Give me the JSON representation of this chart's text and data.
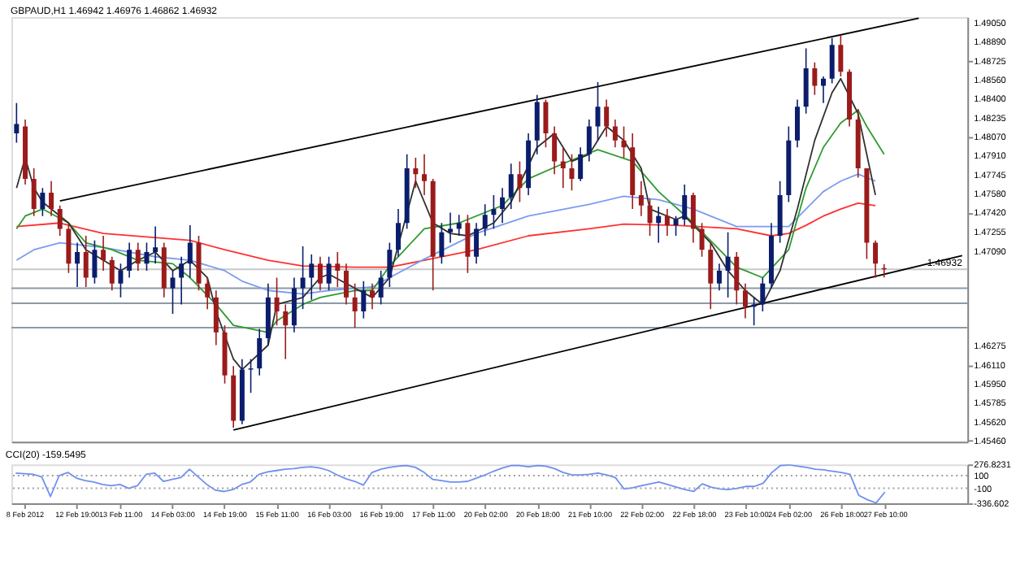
{
  "chart_data": [
    {
      "type": "candlestick",
      "title": "GBPAUD,H1 1.46942 1.46976 1.46862 1.46932",
      "categories": [
        null,
        null,
        null,
        null,
        null,
        null,
        null,
        null,
        null,
        null,
        null,
        null,
        null,
        null,
        null,
        null,
        null,
        null,
        null,
        null,
        null,
        null,
        null,
        null,
        null,
        null,
        null,
        null,
        null,
        null,
        null,
        null,
        null,
        null,
        null,
        null,
        null,
        null,
        null,
        null,
        null,
        null,
        null,
        null,
        null,
        null,
        null,
        null,
        null,
        null,
        null,
        null,
        null,
        null,
        null,
        null,
        null,
        null,
        null,
        null,
        null,
        null,
        null,
        null,
        null,
        null,
        null,
        null,
        null,
        null,
        null,
        null,
        null,
        null,
        null,
        null,
        null,
        null,
        null,
        null,
        null,
        null,
        null,
        null,
        null,
        null,
        null,
        null,
        null,
        null,
        null,
        null,
        null,
        null,
        null,
        null,
        null,
        null,
        null,
        null,
        null,
        null,
        null,
        null,
        null,
        null,
        null,
        null,
        null,
        null
      ],
      "ohlc": [
        [
          1.481,
          1.4836,
          1.4802,
          1.4818
        ],
        [
          1.4816,
          1.4822,
          1.4766,
          1.4771
        ],
        [
          1.4771,
          1.478,
          1.4739,
          1.4745
        ],
        [
          1.4745,
          1.4763,
          1.4739,
          1.4759
        ],
        [
          1.4759,
          1.4769,
          1.4739,
          1.4745
        ],
        [
          1.4745,
          1.4748,
          1.4722,
          1.4728
        ],
        [
          1.4728,
          1.4733,
          1.469,
          1.4698
        ],
        [
          1.4698,
          1.4716,
          1.4678,
          1.4708
        ],
        [
          1.4708,
          1.4722,
          1.4678,
          1.4686
        ],
        [
          1.4686,
          1.4718,
          1.4681,
          1.471
        ],
        [
          1.471,
          1.4722,
          1.4692,
          1.4701
        ],
        [
          1.4701,
          1.4704,
          1.4675,
          1.4681
        ],
        [
          1.4681,
          1.4698,
          1.4669,
          1.4692
        ],
        [
          1.4692,
          1.4716,
          1.4686,
          1.471
        ],
        [
          1.471,
          1.4716,
          1.4692,
          1.4698
        ],
        [
          1.4698,
          1.4716,
          1.4692,
          1.4708
        ],
        [
          1.4708,
          1.473,
          1.4698,
          1.4712
        ],
        [
          1.4712,
          1.4716,
          1.4669,
          1.4677
        ],
        [
          1.4677,
          1.4692,
          1.4655,
          1.4686
        ],
        [
          1.4686,
          1.4704,
          1.4663,
          1.4698
        ],
        [
          1.4698,
          1.4731,
          1.4686,
          1.4716
        ],
        [
          1.4716,
          1.4722,
          1.4675,
          1.4681
        ],
        [
          1.4681,
          1.4686,
          1.4659,
          1.4669
        ],
        [
          1.4669,
          1.4675,
          1.4628,
          1.4639
        ],
        [
          1.4639,
          1.4645,
          1.4595,
          1.4602
        ],
        [
          1.4602,
          1.461,
          1.4557,
          1.4563
        ],
        [
          1.4563,
          1.4616,
          1.456,
          1.4607
        ],
        [
          1.4607,
          1.4616,
          1.4587,
          1.4608
        ],
        [
          1.4608,
          1.4642,
          1.4602,
          1.4634
        ],
        [
          1.4634,
          1.4681,
          1.4628,
          1.4669
        ],
        [
          1.4669,
          1.4686,
          1.4645,
          1.4657
        ],
        [
          1.4657,
          1.4663,
          1.4616,
          1.4645
        ],
        [
          1.4645,
          1.4686,
          1.4639,
          1.4677
        ],
        [
          1.4677,
          1.4713,
          1.4659,
          1.4686
        ],
        [
          1.4686,
          1.4706,
          1.4667,
          1.4698
        ],
        [
          1.4698,
          1.4704,
          1.4675,
          1.4681
        ],
        [
          1.4681,
          1.4704,
          1.4675,
          1.4698
        ],
        [
          1.4698,
          1.4708,
          1.4678,
          1.4692
        ],
        [
          1.4692,
          1.4698,
          1.4663,
          1.4669
        ],
        [
          1.4669,
          1.4681,
          1.4643,
          1.4657
        ],
        [
          1.4657,
          1.4683,
          1.4651,
          1.4675
        ],
        [
          1.4675,
          1.4681,
          1.4659,
          1.4669
        ],
        [
          1.4669,
          1.4692,
          1.4663,
          1.4686
        ],
        [
          1.4686,
          1.4716,
          1.4678,
          1.471
        ],
        [
          1.471,
          1.4745,
          1.4704,
          1.4733
        ],
        [
          1.4733,
          1.4792,
          1.4728,
          1.478
        ],
        [
          1.478,
          1.4789,
          1.4763,
          1.4775
        ],
        [
          1.4775,
          1.4792,
          1.4757,
          1.4769
        ],
        [
          1.4769,
          1.4771,
          1.4675,
          1.4704
        ],
        [
          1.4704,
          1.4733,
          1.4698,
          1.4725
        ],
        [
          1.4725,
          1.4742,
          1.4716,
          1.4728
        ],
        [
          1.4728,
          1.474,
          1.4722,
          1.4733
        ],
        [
          1.4733,
          1.474,
          1.469,
          1.4704
        ],
        [
          1.4704,
          1.4733,
          1.4698,
          1.4728
        ],
        [
          1.4728,
          1.4749,
          1.4722,
          1.474
        ],
        [
          1.474,
          1.4757,
          1.4728,
          1.4745
        ],
        [
          1.4745,
          1.4763,
          1.4733,
          1.4755
        ],
        [
          1.4755,
          1.4784,
          1.4745,
          1.4775
        ],
        [
          1.4775,
          1.4786,
          1.4751,
          1.4763
        ],
        [
          1.4763,
          1.481,
          1.4757,
          1.4804
        ],
        [
          1.4804,
          1.4843,
          1.4792,
          1.4837
        ],
        [
          1.4837,
          1.4839,
          1.4798,
          1.481
        ],
        [
          1.481,
          1.4816,
          1.4775,
          1.4786
        ],
        [
          1.4786,
          1.4798,
          1.4763,
          1.478
        ],
        [
          1.478,
          1.4792,
          1.4761,
          1.4771
        ],
        [
          1.4771,
          1.4798,
          1.4769,
          1.4792
        ],
        [
          1.4792,
          1.4822,
          1.4786,
          1.4816
        ],
        [
          1.4816,
          1.4854,
          1.4804,
          1.4833
        ],
        [
          1.4833,
          1.4839,
          1.4807,
          1.4816
        ],
        [
          1.4816,
          1.4822,
          1.4798,
          1.4804
        ],
        [
          1.4804,
          1.4816,
          1.4789,
          1.4798
        ],
        [
          1.4798,
          1.481,
          1.4745,
          1.4757
        ],
        [
          1.4757,
          1.4769,
          1.4739,
          1.4748
        ],
        [
          1.4748,
          1.4754,
          1.4722,
          1.4733
        ],
        [
          1.4733,
          1.4747,
          1.4716,
          1.4739
        ],
        [
          1.4739,
          1.4745,
          1.4722,
          1.4731
        ],
        [
          1.4731,
          1.4739,
          1.4722,
          1.4736
        ],
        [
          1.4736,
          1.4766,
          1.4731,
          1.4757
        ],
        [
          1.4757,
          1.4759,
          1.4716,
          1.4728
        ],
        [
          1.4728,
          1.4733,
          1.4704,
          1.471
        ],
        [
          1.471,
          1.4716,
          1.4659,
          1.4681
        ],
        [
          1.4681,
          1.4698,
          1.4675,
          1.4692
        ],
        [
          1.4692,
          1.4725,
          1.4669,
          1.4704
        ],
        [
          1.4704,
          1.4708,
          1.4663,
          1.4675
        ],
        [
          1.4675,
          1.4681,
          1.4651,
          1.4661
        ],
        [
          1.4661,
          1.4669,
          1.4645,
          1.4663
        ],
        [
          1.4663,
          1.4686,
          1.4657,
          1.4681
        ],
        [
          1.4681,
          1.4733,
          1.4677,
          1.4722
        ],
        [
          1.4722,
          1.4769,
          1.4716,
          1.4757
        ],
        [
          1.4757,
          1.4816,
          1.4751,
          1.4804
        ],
        [
          1.4804,
          1.4839,
          1.4798,
          1.4833
        ],
        [
          1.4833,
          1.4883,
          1.4827,
          1.4866
        ],
        [
          1.4866,
          1.4871,
          1.4843,
          1.4851
        ],
        [
          1.4851,
          1.4859,
          1.4836,
          1.4857
        ],
        [
          1.4857,
          1.4892,
          1.4853,
          1.4886
        ],
        [
          1.4886,
          1.4894,
          1.4859,
          1.4863
        ],
        [
          1.4863,
          1.4865,
          1.4816,
          1.4822
        ],
        [
          1.4822,
          1.4831,
          1.4772,
          1.478
        ],
        [
          1.478,
          1.478,
          1.4702,
          1.4716
        ],
        [
          1.4716,
          1.4718,
          1.4686,
          1.4698
        ],
        [
          1.46942,
          1.46976,
          1.46862,
          1.46932
        ],
        null,
        null,
        null,
        null,
        null,
        null,
        null,
        null,
        null
      ],
      "colors": [
        "#0b1d6b",
        "#9b1b1b",
        "#9b1b1b",
        "#0b1d6b",
        "#9b1b1b",
        "#9b1b1b",
        "#9b1b1b",
        "#0b1d6b",
        "#9b1b1b",
        "#0b1d6b",
        "#9b1b1b",
        "#9b1b1b",
        "#0b1d6b",
        "#0b1d6b",
        "#9b1b1b",
        "#0b1d6b",
        "#0b1d6b",
        "#9b1b1b",
        "#0b1d6b",
        "#0b1d6b",
        "#0b1d6b",
        "#9b1b1b",
        "#9b1b1b",
        "#9b1b1b",
        "#9b1b1b",
        "#9b1b1b",
        "#0b1d6b",
        "#0b1d6b",
        "#0b1d6b",
        "#0b1d6b",
        "#9b1b1b",
        "#9b1b1b",
        "#0b1d6b",
        "#0b1d6b",
        "#0b1d6b",
        "#9b1b1b",
        "#0b1d6b",
        "#9b1b1b",
        "#9b1b1b",
        "#9b1b1b",
        "#0b1d6b",
        "#9b1b1b",
        "#0b1d6b",
        "#0b1d6b",
        "#0b1d6b",
        "#0b1d6b",
        "#9b1b1b",
        "#9b1b1b",
        "#9b1b1b",
        "#0b1d6b",
        "#0b1d6b",
        "#0b1d6b",
        "#9b1b1b",
        "#0b1d6b",
        "#0b1d6b",
        "#0b1d6b",
        "#0b1d6b",
        "#0b1d6b",
        "#9b1b1b",
        "#0b1d6b",
        "#0b1d6b",
        "#9b1b1b",
        "#9b1b1b",
        "#9b1b1b",
        "#9b1b1b",
        "#0b1d6b",
        "#0b1d6b",
        "#0b1d6b",
        "#9b1b1b",
        "#9b1b1b",
        "#9b1b1b",
        "#9b1b1b",
        "#9b1b1b",
        "#9b1b1b",
        "#0b1d6b",
        "#9b1b1b",
        "#0b1d6b",
        "#0b1d6b",
        "#9b1b1b",
        "#9b1b1b",
        "#9b1b1b",
        "#0b1d6b",
        "#0b1d6b",
        "#9b1b1b",
        "#9b1b1b",
        "#0b1d6b",
        "#0b1d6b",
        "#0b1d6b",
        "#0b1d6b",
        "#0b1d6b",
        "#0b1d6b",
        "#0b1d6b",
        "#9b1b1b",
        "#0b1d6b",
        "#0b1d6b",
        "#9b1b1b",
        "#9b1b1b",
        "#9b1b1b",
        "#9b1b1b",
        "#9b1b1b",
        "#9b1b1b",
        null,
        null,
        null,
        null,
        null,
        null,
        null,
        null,
        null
      ],
      "series": [
        {
          "type": "line",
          "color": "#ff3030",
          "values": [
            1.473,
            null,
            null,
            null,
            null,
            1.4733,
            null,
            null,
            null,
            null,
            1.4724,
            null,
            null,
            null,
            null,
            null,
            null,
            null,
            null,
            null,
            1.4718,
            null,
            null,
            null,
            1.471,
            null,
            null,
            null,
            null,
            1.4701,
            null,
            null,
            null,
            1.4696,
            null,
            null,
            null,
            null,
            null,
            1.4695,
            null,
            null,
            null,
            1.4695,
            null,
            null,
            null,
            1.4701,
            null,
            null,
            null,
            null,
            null,
            1.471,
            null,
            null,
            null,
            null,
            null,
            1.4722,
            null,
            null,
            null,
            null,
            null,
            null,
            1.4728,
            null,
            null,
            null,
            1.4732,
            null,
            null,
            null,
            null,
            null,
            1.4731,
            null,
            null,
            null,
            null,
            null,
            null,
            1.4728,
            null,
            null,
            null,
            1.4722,
            null,
            1.4724,
            null,
            1.4731,
            null,
            1.4739,
            null,
            1.4745,
            null,
            1.475,
            null,
            1.4748,
            null,
            null,
            null,
            null,
            null,
            null,
            null,
            null,
            null,
            null
          ]
        },
        {
          "type": "line",
          "color": "#7b9cf0",
          "values": [
            1.4701,
            null,
            1.471,
            null,
            null,
            1.4716,
            null,
            null,
            null,
            null,
            1.4712,
            null,
            null,
            null,
            null,
            null,
            1.4704,
            null,
            null,
            null,
            1.4701,
            null,
            null,
            null,
            1.4692,
            null,
            1.4683,
            null,
            null,
            1.4675,
            null,
            null,
            null,
            1.4672,
            null,
            null,
            1.4675,
            null,
            null,
            null,
            null,
            1.4678,
            null,
            null,
            null,
            null,
            null,
            1.4702,
            null,
            null,
            null,
            null,
            null,
            1.4724,
            null,
            null,
            null,
            null,
            null,
            1.4739,
            null,
            null,
            null,
            null,
            null,
            null,
            1.4749,
            null,
            null,
            null,
            1.4756,
            null,
            null,
            null,
            1.4753,
            null,
            null,
            null,
            1.4745,
            null,
            null,
            null,
            null,
            1.473,
            null,
            null,
            null,
            null,
            null,
            1.473,
            null,
            1.4745,
            null,
            1.476,
            null,
            1.4769,
            null,
            1.4775,
            null,
            1.4769,
            null,
            null,
            null,
            null,
            null,
            null,
            null,
            null,
            null,
            null
          ]
        },
        {
          "type": "line",
          "color": "#2e9b2e",
          "values": [
            1.4728,
            1.4739,
            null,
            1.4745,
            null,
            null,
            1.4733,
            null,
            1.4716,
            null,
            null,
            1.471,
            null,
            null,
            1.4701,
            null,
            null,
            null,
            1.4698,
            null,
            1.4686,
            null,
            null,
            1.4663,
            null,
            1.4645,
            null,
            null,
            null,
            1.4639,
            1.4649,
            null,
            null,
            1.4663,
            null,
            1.4669,
            null,
            null,
            null,
            1.4675,
            null,
            1.4675,
            null,
            1.4696,
            null,
            null,
            null,
            1.4728,
            null,
            null,
            null,
            1.4733,
            null,
            null,
            null,
            null,
            1.4748,
            null,
            null,
            1.4771,
            null,
            null,
            null,
            1.4784,
            null,
            null,
            null,
            1.4796,
            null,
            null,
            null,
            1.4786,
            null,
            null,
            1.476,
            null,
            null,
            null,
            1.4733,
            null,
            null,
            null,
            null,
            1.4695,
            1.4692,
            null,
            1.4686,
            null,
            null,
            1.471,
            null,
            1.4763,
            null,
            1.4798,
            null,
            1.4819,
            null,
            1.483,
            1.4816,
            null,
            1.4792,
            null,
            null,
            null,
            null,
            null,
            null,
            null,
            null,
            null
          ]
        },
        {
          "type": "line",
          "color": "#303030",
          "values": [
            1.4763,
            1.4789,
            1.4763,
            1.4751,
            null,
            null,
            1.4733,
            null,
            1.471,
            null,
            1.4701,
            null,
            1.4692,
            null,
            1.4701,
            null,
            1.4708,
            null,
            1.4692,
            null,
            1.4701,
            null,
            1.4686,
            1.4657,
            null,
            1.4616,
            1.4607,
            null,
            null,
            1.4628,
            1.4663,
            null,
            null,
            1.4669,
            null,
            1.4686,
            1.4689,
            null,
            1.4681,
            null,
            null,
            1.4669,
            null,
            1.4686,
            null,
            null,
            1.4769,
            null,
            1.4733,
            null,
            1.4724,
            null,
            1.4722,
            null,
            null,
            1.4733,
            null,
            1.4751,
            null,
            null,
            1.4798,
            null,
            1.481,
            null,
            1.4786,
            null,
            1.4792,
            null,
            1.4816,
            null,
            1.4804,
            null,
            1.478,
            1.4745,
            null,
            null,
            1.4736,
            1.4739,
            null,
            null,
            1.4716,
            null,
            1.4692,
            null,
            1.4675,
            null,
            1.4663,
            null,
            1.4692,
            null,
            1.4745,
            null,
            1.4804,
            null,
            1.4845,
            1.4857,
            null,
            1.4827,
            null,
            1.4757,
            null,
            null,
            null,
            null,
            null,
            null,
            null,
            null,
            null,
            null
          ]
        },
        {
          "type": "line",
          "color": "#000000",
          "values": [
            null,
            null,
            null,
            null,
            null,
            1.4752,
            null,
            null,
            null,
            null,
            null,
            null,
            null,
            null,
            null,
            null,
            null,
            null,
            null,
            null,
            null,
            null,
            null,
            null,
            null,
            null,
            null,
            null,
            null,
            null,
            null,
            null,
            null,
            null,
            null,
            null,
            null,
            null,
            null,
            null,
            null,
            null,
            null,
            null,
            null,
            null,
            null,
            null,
            null,
            null,
            null,
            null,
            null,
            null,
            null,
            null,
            null,
            null,
            null,
            null,
            null,
            null,
            null,
            null,
            null,
            null,
            null,
            null,
            null,
            null,
            null,
            null,
            null,
            null,
            null,
            null,
            null,
            null,
            null,
            null,
            null,
            null,
            null,
            null,
            null,
            null,
            null,
            null,
            null,
            null,
            null,
            null,
            null,
            null,
            null,
            null,
            null,
            null,
            null,
            null,
            null,
            null,
            null,
            null,
            1.4909,
            null,
            null,
            null,
            null,
            null
          ]
        },
        {
          "type": "line",
          "color": "#000000",
          "values": [
            null,
            null,
            null,
            null,
            null,
            null,
            null,
            null,
            null,
            null,
            null,
            null,
            null,
            null,
            null,
            null,
            null,
            null,
            null,
            null,
            null,
            null,
            null,
            null,
            null,
            1.4555,
            null,
            null,
            null,
            null,
            null,
            null,
            null,
            null,
            null,
            null,
            null,
            null,
            null,
            null,
            null,
            null,
            null,
            null,
            null,
            null,
            null,
            null,
            null,
            null,
            null,
            null,
            null,
            null,
            null,
            null,
            null,
            null,
            null,
            null,
            null,
            null,
            null,
            null,
            null,
            null,
            null,
            null,
            null,
            null,
            null,
            null,
            null,
            null,
            null,
            null,
            null,
            null,
            null,
            null,
            null,
            null,
            null,
            null,
            null,
            null,
            null,
            null,
            null,
            null,
            null,
            null,
            null,
            null,
            null,
            null,
            null,
            null,
            null,
            null,
            null,
            null,
            null,
            null,
            null,
            null,
            null,
            null,
            null,
            1.4705
          ]
        }
      ],
      "ref_lines": [
        {
          "axis": "y",
          "value": 1.46932,
          "label": "1.46932",
          "color": "#c8c8c8"
        },
        {
          "axis": "y",
          "value": 1.4677,
          "color": "#8c9aa6"
        },
        {
          "axis": "y",
          "value": 1.4664,
          "color": "#8c9aa6"
        },
        {
          "axis": "y",
          "value": 1.4643,
          "color": "#8c9aa6"
        }
      ],
      "ylim": [
        1.4545,
        1.491
      ],
      "yticks": [
        {
          "value": 1.4905,
          "label": "1.49050"
        },
        {
          "value": 1.4889,
          "label": "1.48890"
        },
        {
          "value": 1.48725,
          "label": "1.48725"
        },
        {
          "value": 1.4856,
          "label": "1.48560"
        },
        {
          "value": 1.484,
          "label": "1.48400"
        },
        {
          "value": 1.48235,
          "label": "1.48235"
        },
        {
          "value": 1.4807,
          "label": "1.48070"
        },
        {
          "value": 1.4791,
          "label": "1.47910"
        },
        {
          "value": 1.47745,
          "label": "1.47745"
        },
        {
          "value": 1.4758,
          "label": "1.47580"
        },
        {
          "value": 1.4742,
          "label": "1.47420"
        },
        {
          "value": 1.47255,
          "label": "1.47255"
        },
        {
          "value": 1.4709,
          "label": "1.47090"
        },
        {
          "value": 1.46275,
          "label": "1.46275"
        },
        {
          "value": 1.4611,
          "label": "1.46110"
        },
        {
          "value": 1.4595,
          "label": "1.45950"
        },
        {
          "value": 1.45785,
          "label": "1.45785"
        },
        {
          "value": 1.4562,
          "label": "1.45620"
        },
        {
          "value": 1.4546,
          "label": "1.45460"
        }
      ],
      "tick_labels": "y",
      "grid": false
    },
    {
      "type": "line",
      "title": "CCI(20) -159.5495",
      "categories": [
        null,
        "8 Feb 2012",
        null,
        null,
        null,
        null,
        null,
        "12 Feb 19:00",
        null,
        null,
        null,
        null,
        "13 Feb 11:00",
        null,
        null,
        null,
        null,
        null,
        "14 Feb 03:00",
        null,
        null,
        null,
        null,
        null,
        "14 Feb 19:00",
        null,
        null,
        null,
        null,
        null,
        "15 Feb 11:00",
        null,
        null,
        null,
        null,
        null,
        "16 Feb 03:00",
        null,
        null,
        null,
        null,
        null,
        "16 Feb 19:00",
        null,
        null,
        null,
        null,
        null,
        "17 Feb 11:00",
        null,
        null,
        null,
        null,
        null,
        "20 Feb 02:00",
        null,
        null,
        null,
        null,
        null,
        "20 Feb 18:00",
        null,
        null,
        null,
        null,
        null,
        "21 Feb 10:00",
        null,
        null,
        null,
        null,
        null,
        "22 Feb 02:00",
        null,
        null,
        null,
        null,
        null,
        "22 Feb 18:00",
        null,
        null,
        null,
        null,
        null,
        "23 Feb 10:00",
        null,
        null,
        null,
        null,
        "24 Feb 02:00",
        null,
        null,
        null,
        null,
        null,
        "26 Feb 18:00",
        null,
        null,
        null,
        null,
        "27 Feb 10:00",
        null,
        null,
        null,
        null,
        null,
        null,
        null,
        null,
        null
      ],
      "series": [
        {
          "color": "#6f8ff0",
          "values": [
            140,
            130,
            120,
            80,
            -230,
            100,
            150,
            60,
            20,
            0,
            -40,
            -60,
            -40,
            -100,
            -60,
            120,
            140,
            10,
            40,
            70,
            200,
            80,
            -40,
            -130,
            -150,
            -120,
            -40,
            0,
            120,
            160,
            180,
            200,
            210,
            230,
            240,
            220,
            180,
            110,
            50,
            10,
            -50,
            150,
            200,
            230,
            250,
            260,
            230,
            150,
            40,
            20,
            0,
            0,
            10,
            60,
            110,
            170,
            220,
            260,
            260,
            240,
            260,
            250,
            210,
            150,
            110,
            110,
            120,
            140,
            110,
            70,
            -110,
            -90,
            -60,
            -30,
            0,
            -40,
            -80,
            -120,
            -150,
            -30,
            -80,
            -110,
            -120,
            -100,
            -70,
            -70,
            -20,
            150,
            260,
            270,
            250,
            230,
            200,
            190,
            170,
            150,
            120,
            -210,
            -280,
            -330,
            -160,
            null,
            null,
            null,
            null,
            null,
            null,
            null,
            null,
            null
          ]
        }
      ],
      "ref_lines": [
        {
          "axis": "y",
          "value": 100,
          "color": "#a0a0a0",
          "line_style": "dotted"
        },
        {
          "axis": "y",
          "value": -100,
          "color": "#a0a0a0",
          "line_style": "dotted"
        }
      ],
      "ylim": [
        -336.602,
        276.8231
      ],
      "yticks": [
        {
          "value": 276.8231,
          "label": "276.8231"
        },
        100,
        -100,
        {
          "value": -336.602,
          "label": "-336.602"
        }
      ],
      "grid": false
    }
  ]
}
